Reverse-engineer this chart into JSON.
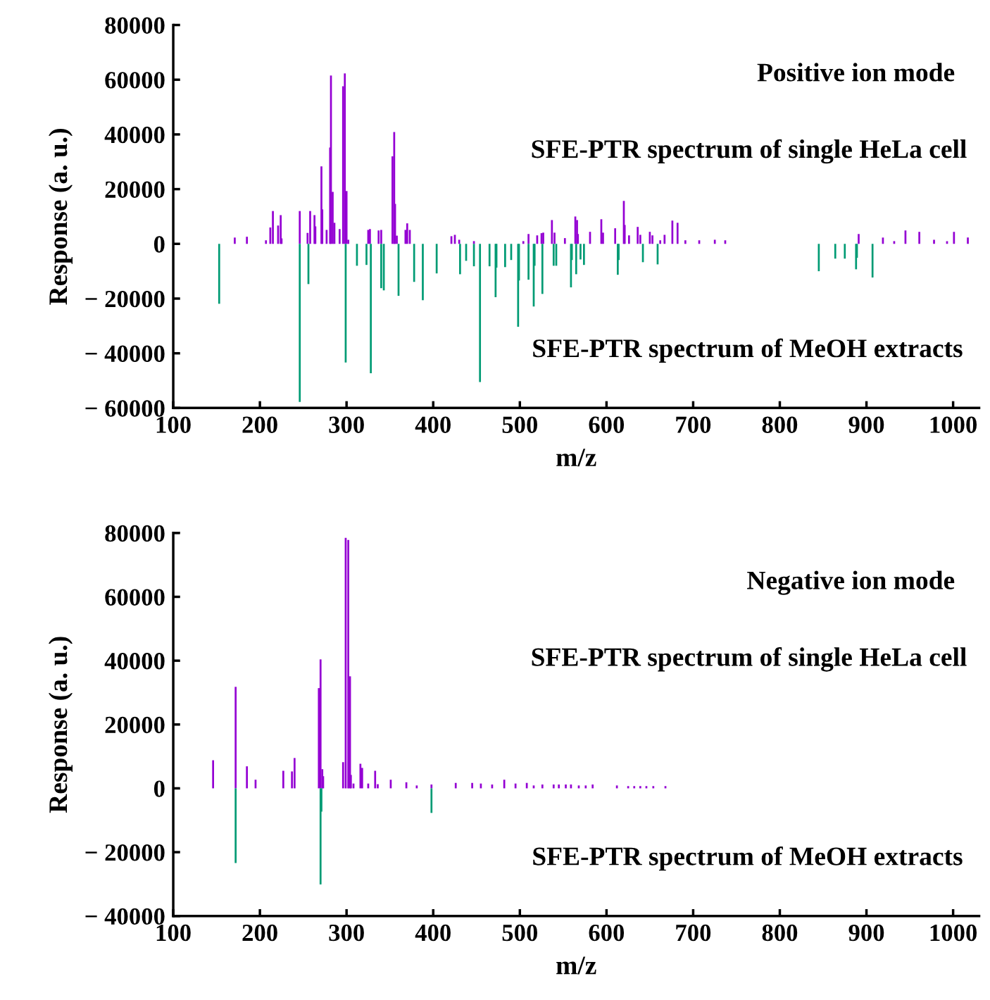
{
  "chart_data": [
    {
      "type": "bar",
      "xlabel": "m/z",
      "ylabel": "Response (a. u.)",
      "xlim": [
        100,
        1030
      ],
      "xticks": [
        100,
        200,
        300,
        400,
        500,
        600,
        700,
        800,
        900,
        1000
      ],
      "ylim": [
        -60000,
        80000
      ],
      "yticks": [
        -60000,
        -40000,
        -20000,
        0,
        20000,
        40000,
        60000,
        80000
      ],
      "grid": false,
      "legend": false,
      "annotations": [
        "Positive ion mode",
        "SFE-PTR spectrum of single HeLa cell",
        "SFE-PTR spectrum of MeOH extracts"
      ],
      "series": [
        {
          "color": "#9400d3",
          "x": [
            171,
            185,
            207,
            212,
            215,
            221,
            224,
            225,
            246,
            255,
            258,
            263,
            264,
            271,
            272,
            277,
            280,
            281,
            282,
            284,
            286,
            292,
            296,
            298,
            300,
            302,
            325,
            327,
            337,
            340,
            353,
            355,
            356,
            358,
            368,
            370,
            373,
            421,
            425,
            430,
            447,
            504,
            510,
            520,
            525,
            527,
            537,
            540,
            552,
            564,
            566,
            567,
            581,
            594,
            596,
            610,
            620,
            621,
            626,
            636,
            639,
            650,
            653,
            662,
            667,
            676,
            682,
            691,
            707,
            725,
            737,
            891,
            919,
            932,
            945,
            961,
            978,
            993,
            1001,
            1017
          ],
          "values": [
            2300,
            2600,
            1300,
            6000,
            12000,
            6700,
            10500,
            2000,
            12000,
            4000,
            12000,
            10500,
            6400,
            28300,
            12600,
            5100,
            null,
            35200,
            61500,
            19000,
            7700,
            5400,
            57600,
            62300,
            19300,
            1500,
            5100,
            5400,
            4900,
            5100,
            32000,
            40900,
            14600,
            3000,
            5100,
            7500,
            5100,
            2800,
            3300,
            1500,
            1000,
            1000,
            3600,
            3100,
            3900,
            4100,
            8700,
            4100,
            2100,
            10000,
            8700,
            3600,
            4400,
            9000,
            4100,
            5700,
            15700,
            6900,
            3100,
            6200,
            3300,
            4400,
            3100,
            1300,
            3300,
            8500,
            7700,
            1300,
            1300,
            1500,
            1300,
            3600,
            2300,
            1000,
            4900,
            4400,
            1500,
            1000,
            4400,
            2300
          ]
        },
        {
          "color": "#009b74",
          "x": [
            153,
            246,
            256,
            299,
            312,
            323,
            328,
            340,
            343,
            360,
            378,
            388,
            404,
            431,
            438,
            447,
            454,
            465,
            472,
            473,
            483,
            490,
            498,
            499,
            510,
            516,
            517,
            526,
            539,
            542,
            559,
            560,
            565,
            570,
            574,
            613,
            614,
            642,
            659,
            845,
            864,
            875,
            888,
            889,
            907
          ],
          "values": [
            -21900,
            -57800,
            -14700,
            -43400,
            -8000,
            -7700,
            -47300,
            -16200,
            -17000,
            -19000,
            -13900,
            -20600,
            -10800,
            -11100,
            -6200,
            -8200,
            -50500,
            -8200,
            -19500,
            -8700,
            -8500,
            -5900,
            -30300,
            -13400,
            -13100,
            -22900,
            -8000,
            -18300,
            -8000,
            -8000,
            -15900,
            -5900,
            -11100,
            -5700,
            -7700,
            -11300,
            -5900,
            -6700,
            -7500,
            -10000,
            -5400,
            -5400,
            -9300,
            -5100,
            -12300
          ]
        }
      ]
    },
    {
      "type": "bar",
      "xlabel": "m/z",
      "ylabel": "Response (a. u.)",
      "xlim": [
        100,
        1030
      ],
      "xticks": [
        100,
        200,
        300,
        400,
        500,
        600,
        700,
        800,
        900,
        1000
      ],
      "ylim": [
        -40000,
        80000
      ],
      "yticks": [
        -40000,
        -20000,
        0,
        20000,
        40000,
        60000,
        80000
      ],
      "grid": false,
      "legend": false,
      "annotations": [
        "Negative ion mode",
        "SFE-PTR spectrum of single HeLa cell",
        "SFE-PTR spectrum of MeOH extracts"
      ],
      "series": [
        {
          "color": "#9400d3",
          "x": [
            146,
            172,
            185,
            195,
            227,
            237,
            240,
            268,
            270,
            272,
            273,
            295,
            296,
            299,
            302,
            304,
            305,
            308,
            316,
            318,
            325,
            333,
            336,
            351,
            369,
            381,
            398,
            426,
            445,
            455,
            468,
            482,
            495,
            508,
            516,
            526,
            539,
            545,
            553,
            559,
            568,
            576,
            584,
            612,
            625,
            632,
            639,
            646,
            654,
            668
          ],
          "values": [
            8800,
            31800,
            6900,
            2700,
            5500,
            5300,
            9500,
            31400,
            40400,
            6000,
            3800,
            null,
            8200,
            78500,
            77800,
            35100,
            4200,
            1500,
            7700,
            6400,
            1500,
            5500,
            1300,
            2700,
            1900,
            900,
            1200,
            1700,
            1700,
            1500,
            1200,
            2700,
            1500,
            1700,
            900,
            1200,
            1200,
            1200,
            1200,
            1200,
            900,
            900,
            1200,
            900,
            700,
            700,
            700,
            700,
            700,
            700
          ]
        },
        {
          "color": "#009b74",
          "x": [
            172,
            270,
            271,
            398
          ],
          "values": [
            -23400,
            -30100,
            -7300,
            -7700
          ]
        }
      ]
    }
  ]
}
